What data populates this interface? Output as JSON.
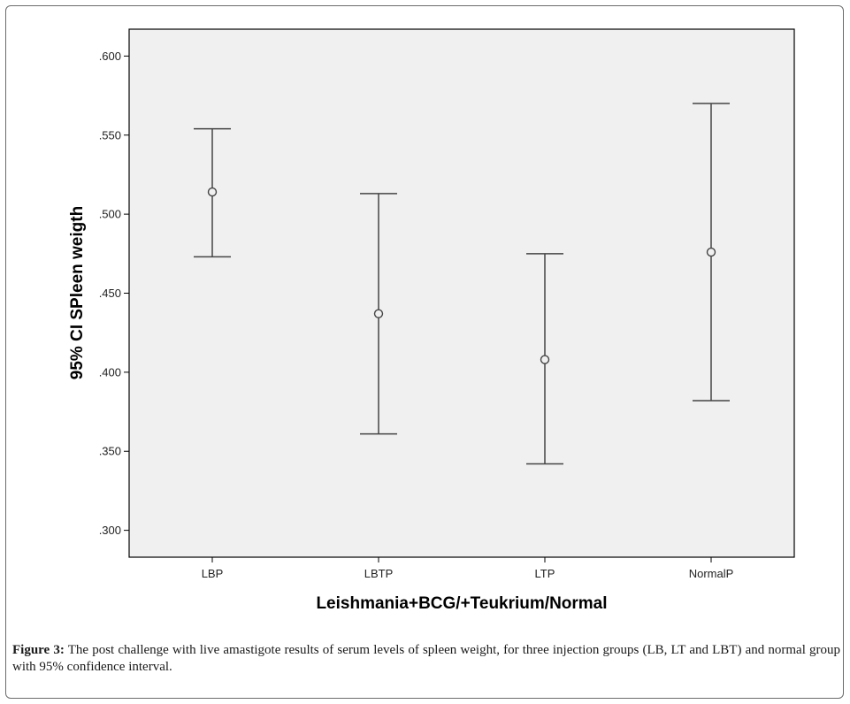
{
  "chart_data": {
    "type": "errorbar",
    "xlabel": "Leishmania+BCG/+Teukrium/Normal",
    "ylabel": "95% CI SPleen weigth",
    "categories": [
      "LBP",
      "LBTP",
      "LTP",
      "NormalP"
    ],
    "points": [
      {
        "category": "LBP",
        "mean": 0.514,
        "lower": 0.473,
        "upper": 0.554
      },
      {
        "category": "LBTP",
        "mean": 0.437,
        "lower": 0.361,
        "upper": 0.513
      },
      {
        "category": "LTP",
        "mean": 0.408,
        "lower": 0.342,
        "upper": 0.475
      },
      {
        "category": "NormalP",
        "mean": 0.476,
        "lower": 0.382,
        "upper": 0.57
      }
    ],
    "ylim": [
      0.283,
      0.617
    ],
    "yticks": [
      {
        "value": 0.3,
        "label": ".300"
      },
      {
        "value": 0.35,
        "label": ".350"
      },
      {
        "value": 0.4,
        "label": ".400"
      },
      {
        "value": 0.45,
        "label": ".450"
      },
      {
        "value": 0.5,
        "label": ".500"
      },
      {
        "value": 0.55,
        "label": ".550"
      },
      {
        "value": 0.6,
        "label": ".600"
      }
    ],
    "grid": false,
    "colors": {
      "plot_background": "#f0f0f0",
      "axis": "#000000",
      "marks": "#444444"
    }
  },
  "caption": {
    "label": "Figure 3:",
    "text": "The post challenge with live amastigote results of serum levels of spleen weight, for three injection groups (LB, LT and LBT) and normal group with 95% confidence interval."
  }
}
